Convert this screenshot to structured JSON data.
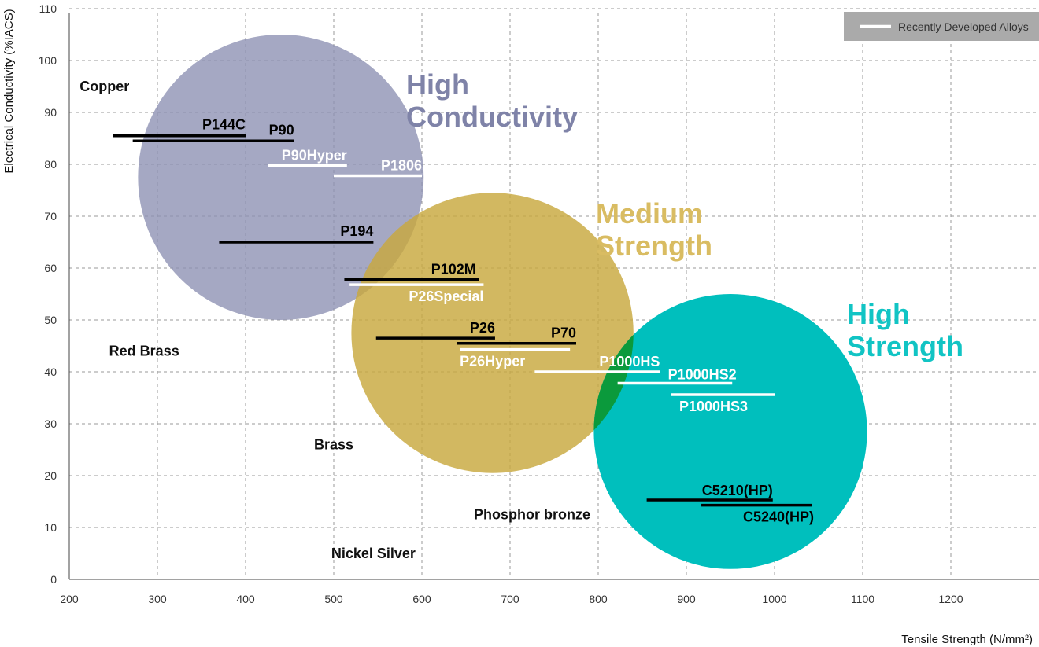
{
  "chart_data": {
    "type": "scatter",
    "xlabel": "Tensile Strength (N/mm²)",
    "ylabel": "Electrical Conductivity (%IACS)",
    "xlim": [
      200,
      1300
    ],
    "ylim": [
      0,
      110
    ],
    "x_ticks": [
      200,
      300,
      400,
      500,
      600,
      700,
      800,
      900,
      1000,
      1100,
      1200
    ],
    "y_ticks": [
      0,
      10,
      20,
      30,
      40,
      50,
      60,
      70,
      80,
      90,
      100,
      110
    ],
    "grid": true,
    "legend": {
      "position": "top-right",
      "entry": "Recently Developed Alloys"
    },
    "regions": [
      {
        "label": [
          "High",
          "Conductivity"
        ],
        "cx": 440,
        "cy": 77.5,
        "rx": 162,
        "ry": 27.5,
        "color": "#8C8FB2",
        "opacity": 0.78
      },
      {
        "label": [
          "Medium",
          "Strength"
        ],
        "cx": 680,
        "cy": 47.5,
        "rx": 160,
        "ry": 27,
        "color": "#C8A83E",
        "opacity": 0.82
      },
      {
        "label": [
          "High",
          "Strength"
        ],
        "cx": 950,
        "cy": 28.5,
        "rx": 155,
        "ry": 26.5,
        "color": "#00BFBD",
        "opacity": 1.0
      }
    ],
    "region_label_colors": [
      "#7F83A8",
      "#D9BC62",
      "#11C4C4"
    ],
    "materials": [
      {
        "name": "Copper",
        "x": 240,
        "y": 95
      },
      {
        "name": "Red Brass",
        "x": 285,
        "y": 44
      },
      {
        "name": "Brass",
        "x": 500,
        "y": 26
      },
      {
        "name": "Phosphor bronze",
        "x": 725,
        "y": 12.5
      },
      {
        "name": "Nickel Silver",
        "x": 545,
        "y": 5
      }
    ],
    "alloys": [
      {
        "name": "P144C",
        "x": [
          250,
          400
        ],
        "y": 85.5,
        "recent": false
      },
      {
        "name": "P90",
        "x": [
          272,
          455
        ],
        "y": 84.5,
        "recent": false
      },
      {
        "name": "P90Hyper",
        "x": [
          425,
          515
        ],
        "y": 79.8,
        "recent": true
      },
      {
        "name": "P1806",
        "x": [
          500,
          600
        ],
        "y": 77.8,
        "recent": true
      },
      {
        "name": "P194",
        "x": [
          370,
          545
        ],
        "y": 65,
        "recent": false
      },
      {
        "name": "P102M",
        "x": [
          512,
          665
        ],
        "y": 57.8,
        "recent": false
      },
      {
        "name": "P26Special",
        "x": [
          518,
          670
        ],
        "y": 56.8,
        "recent": true
      },
      {
        "name": "P26",
        "x": [
          548,
          683
        ],
        "y": 46.5,
        "recent": false
      },
      {
        "name": "P70",
        "x": [
          640,
          775
        ],
        "y": 45.5,
        "recent": false
      },
      {
        "name": "P26Hyper",
        "x": [
          643,
          768
        ],
        "y": 44.3,
        "recent": true
      },
      {
        "name": "P1000HS",
        "x": [
          728,
          870
        ],
        "y": 40,
        "recent": true
      },
      {
        "name": "P1000HS2",
        "x": [
          822,
          952
        ],
        "y": 37.8,
        "recent": true
      },
      {
        "name": "P1000HS3",
        "x": [
          883,
          1000
        ],
        "y": 35.6,
        "recent": true
      },
      {
        "name": "C5210(HP)",
        "x": [
          855,
          998
        ],
        "y": 15.3,
        "recent": false
      },
      {
        "name": "C5240(HP)",
        "x": [
          917,
          1042
        ],
        "y": 14.3,
        "recent": false
      }
    ]
  }
}
